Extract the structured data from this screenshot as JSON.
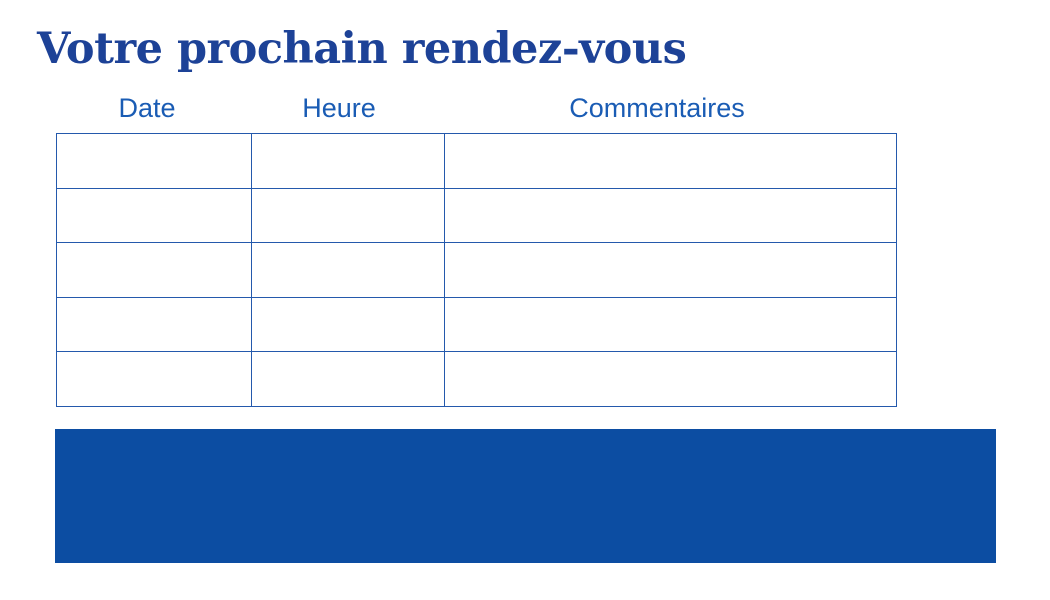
{
  "page": {
    "title": "Votre prochain rendez-vous"
  },
  "table": {
    "headers": [
      "Date",
      "Heure",
      "Commentaires"
    ],
    "rows": [
      [
        "",
        "",
        ""
      ],
      [
        "",
        "",
        ""
      ],
      [
        "",
        "",
        ""
      ],
      [
        "",
        "",
        ""
      ],
      [
        "",
        "",
        ""
      ]
    ]
  },
  "footer_band": {
    "text": ""
  },
  "colors": {
    "title": "#1d4297",
    "header_text": "#1a5cb4",
    "table_border": "#2459ac",
    "band": "#0c4da2",
    "page_bg": "#ffffff"
  }
}
